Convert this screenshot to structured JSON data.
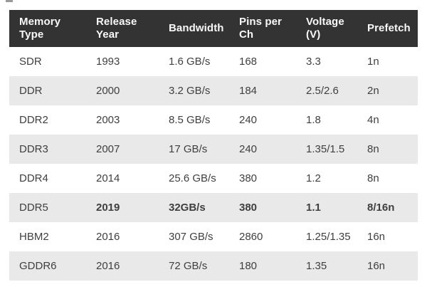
{
  "colors": {
    "page_bg": "#ffffff",
    "header_bg": "#333333",
    "header_text": "#f8f8f8",
    "stripe_bg": "#e9e9e9",
    "row_bg": "#ffffff",
    "body_text": "#3f3f3f"
  },
  "header": {
    "labels_wrapped": [
      "Memory\nType",
      "Release\nYear",
      "Bandwidth",
      "Pins per\nCh",
      "Voltage\n(V)",
      "Prefetch"
    ]
  },
  "chart_data": {
    "type": "table",
    "columns": [
      "Memory Type",
      "Release Year",
      "Bandwidth",
      "Pins per Ch",
      "Voltage (V)",
      "Prefetch"
    ],
    "rows": [
      [
        "SDR",
        "1993",
        "1.6 GB/s",
        "168",
        "3.3",
        "1n"
      ],
      [
        "DDR",
        "2000",
        "3.2 GB/s",
        "184",
        "2.5/2.6",
        "2n"
      ],
      [
        "DDR2",
        "2003",
        "8.5 GB/s",
        "240",
        "1.8",
        "4n"
      ],
      [
        "DDR3",
        "2007",
        "17 GB/s",
        "240",
        "1.35/1.5",
        "8n"
      ],
      [
        "DDR4",
        "2014",
        "25.6 GB/s",
        "380",
        "1.2",
        "8n"
      ],
      [
        "DDR5",
        "2019",
        "32GB/s",
        "380",
        "1.1",
        "8/16n"
      ],
      [
        "HBM2",
        "2016",
        "307 GB/s",
        "2860",
        "1.25/1.35",
        "16n"
      ],
      [
        "GDDR6",
        "2016",
        "72 GB/s",
        "180",
        "1.35",
        "16n"
      ]
    ],
    "emphasized_row": "DDR5",
    "emphasized_row_index": 5,
    "shaded_rows": [
      1,
      3,
      5,
      7
    ],
    "legend_position": "none",
    "grid": "row-striping only, no cell borders"
  }
}
